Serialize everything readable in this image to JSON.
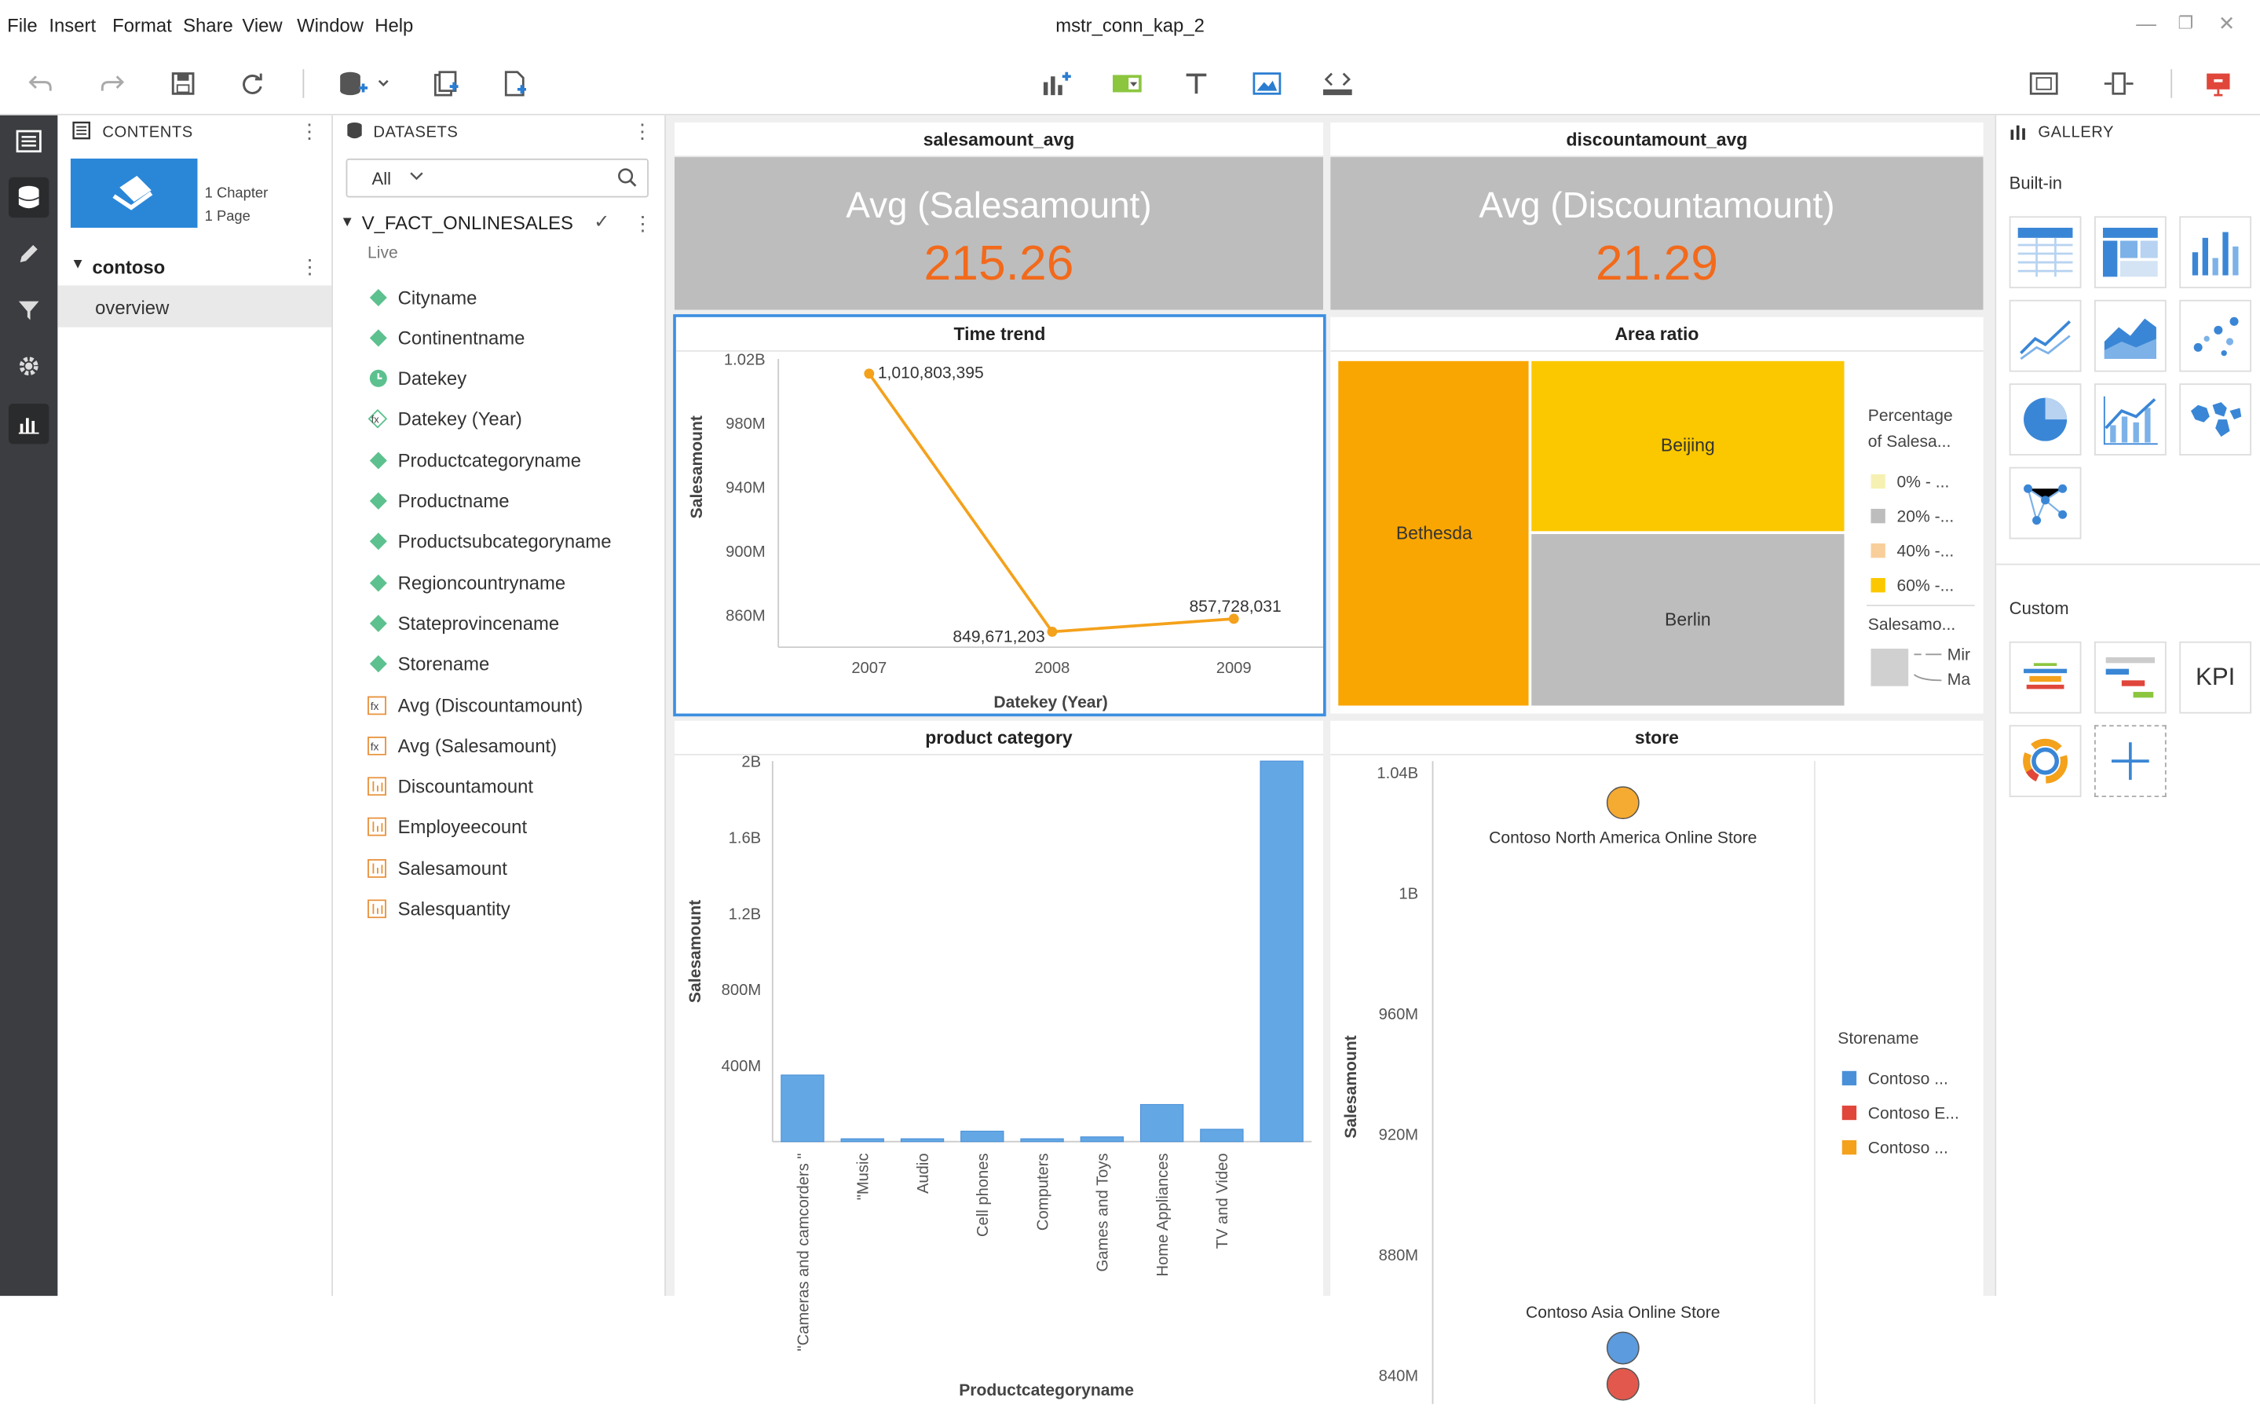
{
  "menu": [
    "File",
    "Insert",
    "Format",
    "Share",
    "View",
    "Window",
    "Help"
  ],
  "window_title": "mstr_conn_kap_2",
  "contents": {
    "header": "CONTENTS",
    "chapters": "1 Chapter",
    "pages": "1 Page",
    "chapter_name": "contoso",
    "page_name": "overview"
  },
  "datasets": {
    "header": "DATASETS",
    "filter": "All",
    "dataset_name": "V_FACT_ONLINESALES",
    "mode": "Live",
    "fields": [
      {
        "label": "Cityname",
        "kind": "attr"
      },
      {
        "label": "Continentname",
        "kind": "attr"
      },
      {
        "label": "Datekey",
        "kind": "date"
      },
      {
        "label": "Datekey (Year)",
        "kind": "derived-attr"
      },
      {
        "label": "Productcategoryname",
        "kind": "attr"
      },
      {
        "label": "Productname",
        "kind": "attr"
      },
      {
        "label": "Productsubcategoryname",
        "kind": "attr"
      },
      {
        "label": "Regioncountryname",
        "kind": "attr"
      },
      {
        "label": "Stateprovincename",
        "kind": "attr"
      },
      {
        "label": "Storename",
        "kind": "attr"
      },
      {
        "label": "Avg (Discountamount)",
        "kind": "derived-metric"
      },
      {
        "label": "Avg (Salesamount)",
        "kind": "derived-metric"
      },
      {
        "label": "Discountamount",
        "kind": "metric"
      },
      {
        "label": "Employeecount",
        "kind": "metric"
      },
      {
        "label": "Salesamount",
        "kind": "metric"
      },
      {
        "label": "Salesquantity",
        "kind": "metric"
      }
    ]
  },
  "kpis": [
    {
      "title": "salesamount_avg",
      "label": "Avg (Salesamount)",
      "value": "215.26"
    },
    {
      "title": "discountamount_avg",
      "label": "Avg (Discountamount)",
      "value": "21.29"
    }
  ],
  "time_trend": {
    "title": "Time trend",
    "xlabel": "Datekey (Year)",
    "ylabel": "Salesamount",
    "yticks": [
      "1.02B",
      "980M",
      "940M",
      "900M",
      "860M"
    ],
    "x": [
      "2007",
      "2008",
      "2009"
    ],
    "labels": [
      "1,010,803,395",
      "849,671,203",
      "857,728,031"
    ]
  },
  "area_ratio": {
    "title": "Area ratio",
    "cells": [
      "Bethesda",
      "Beijing",
      "Berlin"
    ],
    "legend_title": "Percentage of Salesa...",
    "legend": [
      "0% - ...",
      "20% -...",
      "40% -...",
      "60% -..."
    ],
    "size_title": "Salesamo...",
    "size_legend": [
      "Mir",
      "Ma"
    ]
  },
  "product_category": {
    "title": "product category",
    "xlabel": "Productcategoryname",
    "ylabel": "Salesamount",
    "yticks": [
      "2B",
      "1.6B",
      "1.2B",
      "800M",
      "400M"
    ],
    "categories": [
      "\"Cameras and camcorders \"",
      "\"Music",
      "Audio",
      "Cell phones",
      "Computers",
      "Games and Toys",
      "Home Appliances",
      "TV and Video"
    ]
  },
  "store": {
    "title": "store",
    "ylabel": "Salesamount",
    "yticks": [
      "1.04B",
      "1B",
      "960M",
      "920M",
      "880M",
      "840M"
    ],
    "point_labels": [
      "Contoso North America Online Store",
      "Contoso Asia Online Store"
    ],
    "legend_title": "Storename",
    "legend": [
      "Contoso ...",
      "Contoso E...",
      "Contoso ..."
    ]
  },
  "gallery": {
    "header": "GALLERY",
    "builtin": "Built-in",
    "custom": "Custom",
    "kpi_label": "KPI"
  },
  "chart_data": [
    {
      "type": "line",
      "title": "Time trend",
      "xlabel": "Datekey (Year)",
      "ylabel": "Salesamount",
      "x": [
        "2007",
        "2008",
        "2009"
      ],
      "series": [
        {
          "values": [
            1010803395,
            849671203,
            857728031
          ]
        }
      ],
      "ylim": [
        840000000,
        1020000000
      ],
      "color": "#f4a11b"
    },
    {
      "type": "bar",
      "title": "product category",
      "xlabel": "Productcategoryname",
      "ylabel": "Salesamount",
      "categories": [
        "\"Cameras and camcorders \"",
        "\"Music",
        "Audio",
        "Cell phones",
        "Computers",
        "Games and Toys",
        "Home Appliances",
        "TV and Video",
        ""
      ],
      "values": [
        350000000,
        15000000,
        15000000,
        55000000,
        15000000,
        25000000,
        195000000,
        65000000,
        2000000000
      ],
      "ylim": [
        0,
        2000000000
      ],
      "color": "#63a8e4"
    },
    {
      "type": "scatter",
      "title": "store",
      "ylabel": "Salesamount",
      "ylim": [
        840000000,
        1040000000
      ],
      "series": [
        {
          "values": [
            1030000000
          ],
          "color": "#f4a11b"
        },
        {
          "values": [
            849000000
          ],
          "color": "#4a90d9"
        },
        {
          "values": [
            837000000
          ],
          "color": "#e0463a"
        }
      ]
    }
  ]
}
